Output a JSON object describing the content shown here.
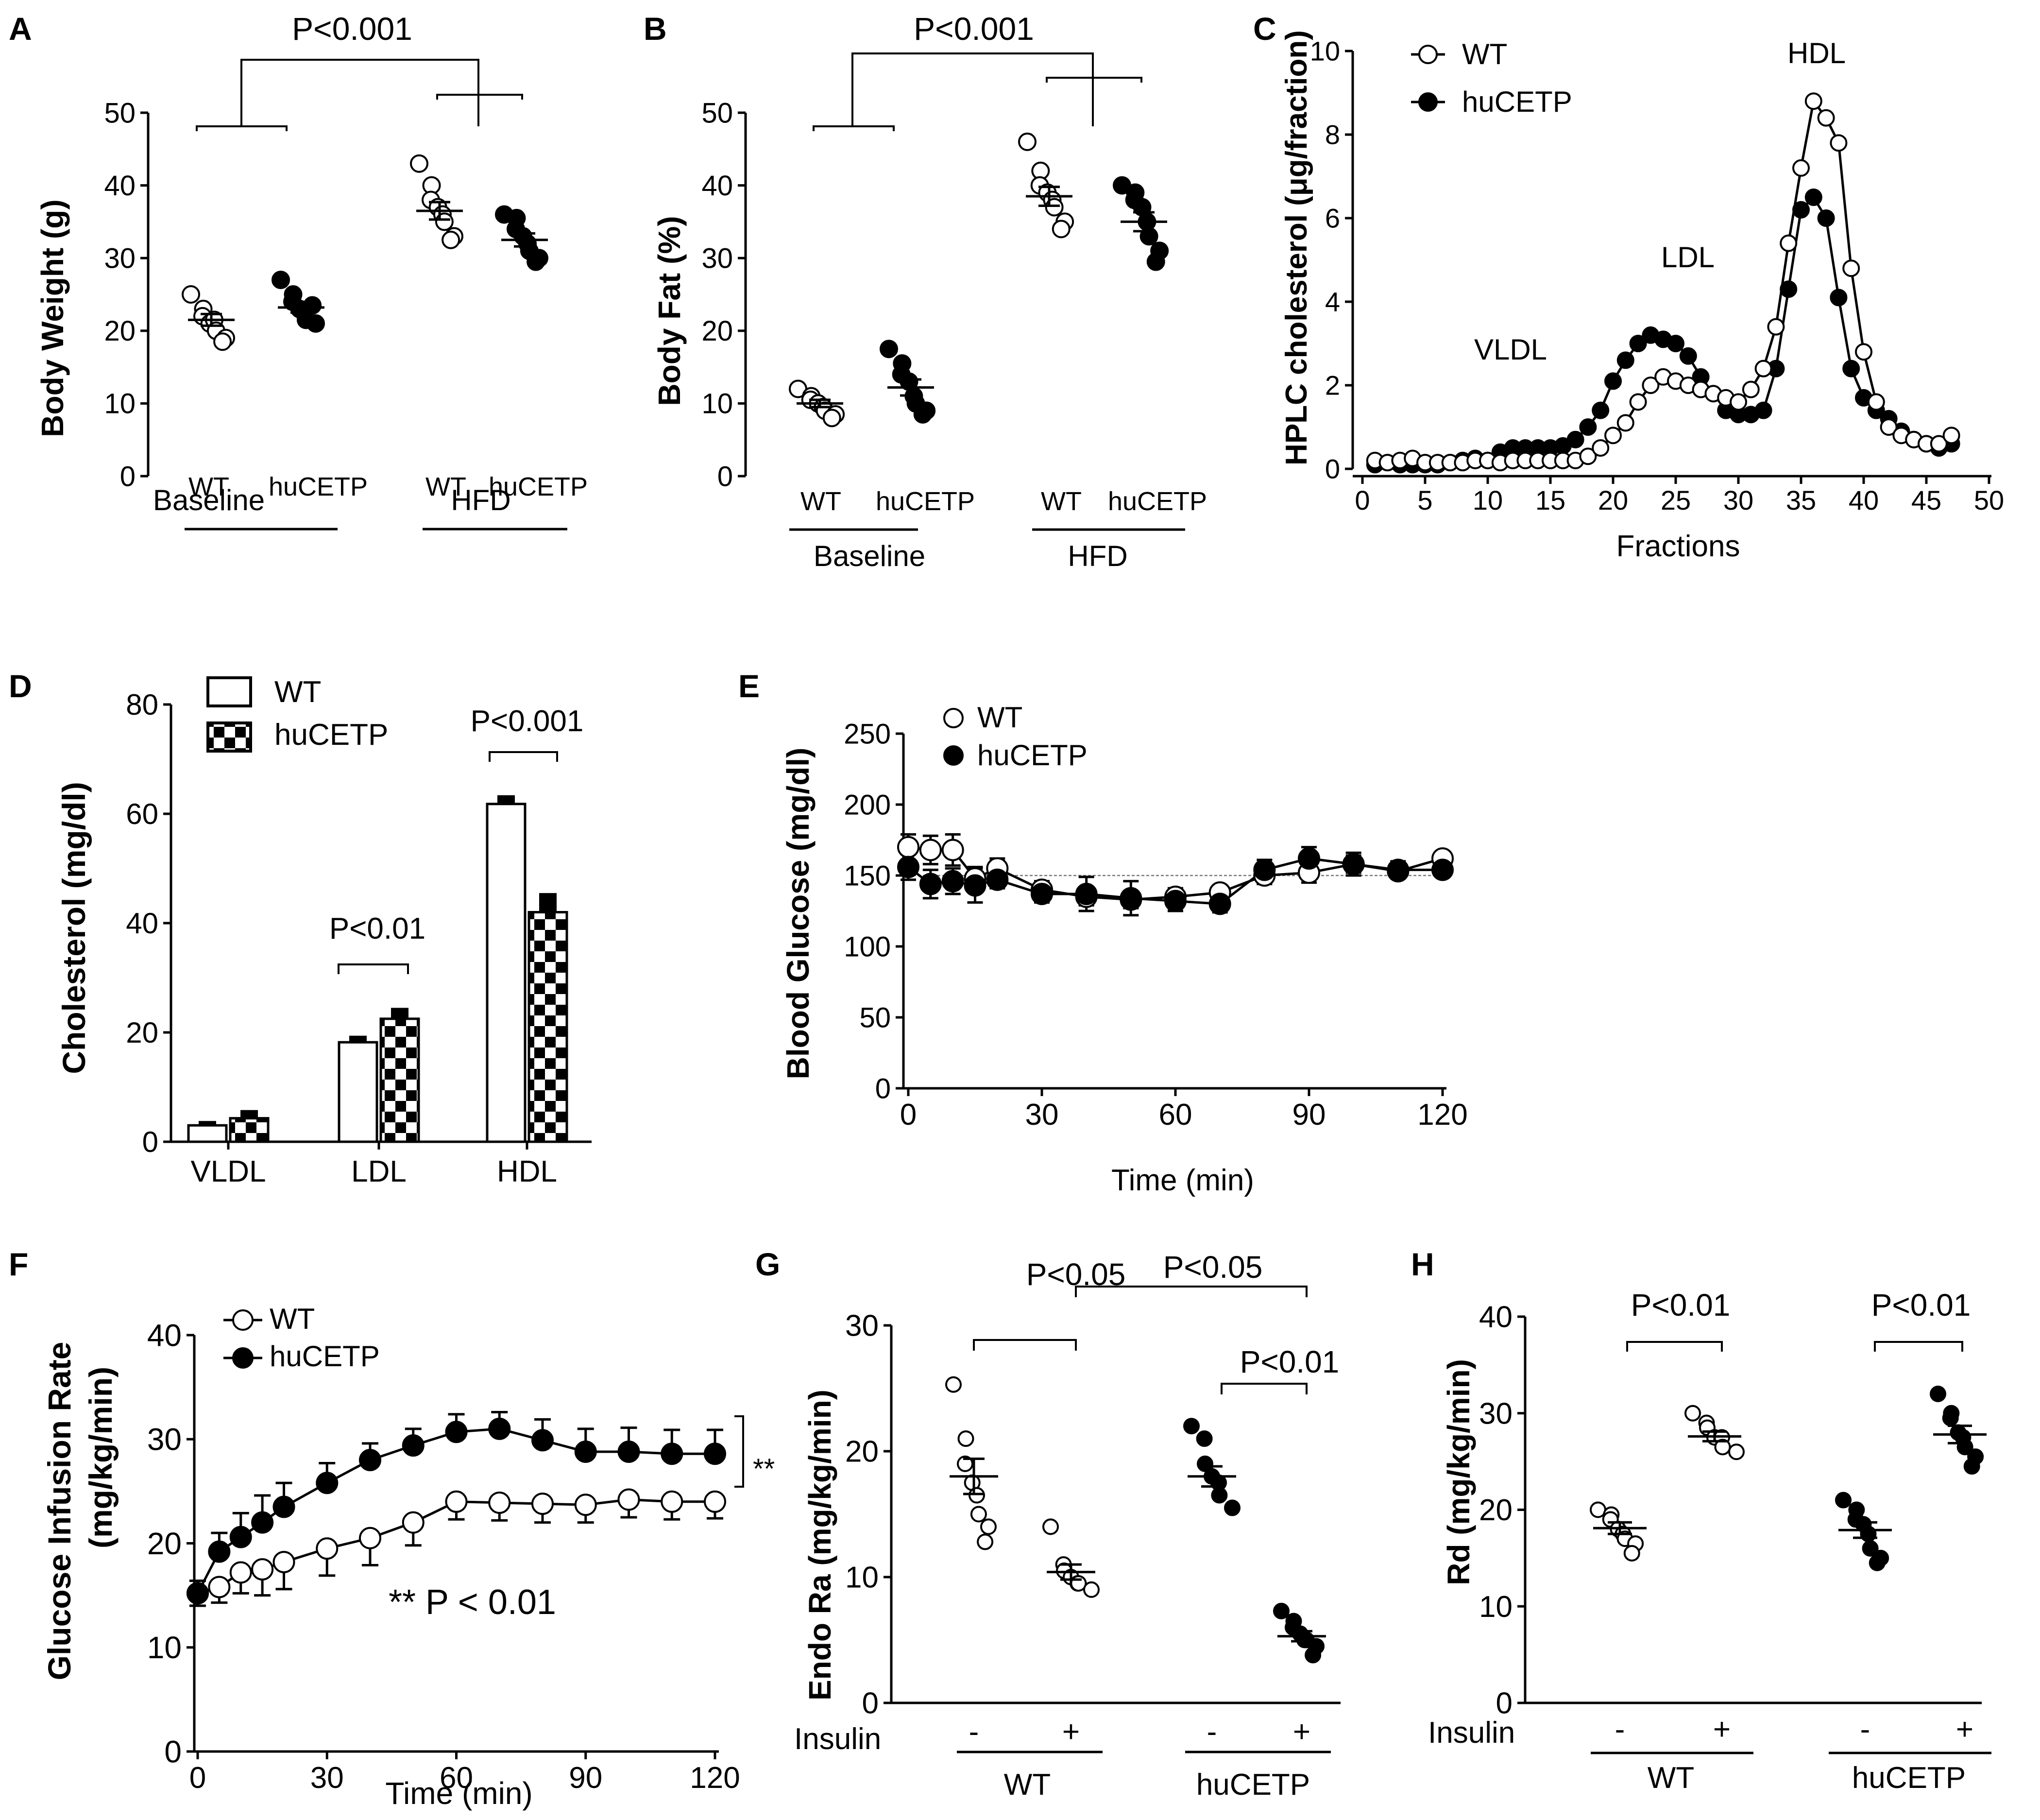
{
  "panels": {
    "A": {
      "letter": "A",
      "title": "P<0.001",
      "ylabel": "Body Weight (g)",
      "yticks": [
        "0",
        "10",
        "20",
        "30",
        "40",
        "50"
      ],
      "xlabels": [
        "WT",
        "huCETP",
        "WT",
        "huCETP"
      ],
      "groups": [
        "Baseline",
        "HFD"
      ]
    },
    "B": {
      "letter": "B",
      "title": "P<0.001",
      "ylabel": "Body Fat (%)",
      "yticks": [
        "0",
        "10",
        "20",
        "30",
        "40",
        "50"
      ],
      "xlabels": [
        "WT",
        "huCETP",
        "WT",
        "huCETP"
      ],
      "groups": [
        "Baseline",
        "HFD"
      ]
    },
    "C": {
      "letter": "C",
      "ylabel": "HPLC cholesterol (μg/fraction)",
      "xlabel": "Fractions",
      "yticks": [
        "0",
        "2",
        "4",
        "6",
        "8",
        "10"
      ],
      "xticks": [
        "0",
        "5",
        "10",
        "15",
        "20",
        "25",
        "30",
        "35",
        "40",
        "45",
        "50"
      ],
      "legend": [
        "WT",
        "huCETP"
      ],
      "annotations": [
        "VLDL",
        "LDL",
        "HDL"
      ]
    },
    "D": {
      "letter": "D",
      "ylabel": "Cholesterol  (mg/dl)",
      "yticks": [
        "0",
        "20",
        "40",
        "60",
        "80"
      ],
      "legend": [
        "WT",
        "huCETP"
      ],
      "pvalues": [
        "P<0.01",
        "P<0.001"
      ]
    },
    "E": {
      "letter": "E",
      "ylabel": "Blood Glucose (mg/dl)",
      "xlabel": "Time (min)",
      "yticks": [
        "0",
        "50",
        "100",
        "150",
        "200",
        "250"
      ],
      "xticks": [
        "0",
        "30",
        "60",
        "90",
        "120"
      ],
      "legend": [
        "WT",
        "huCETP"
      ]
    },
    "F": {
      "letter": "F",
      "ylabel_line1": "Glucose Infusion Rate",
      "ylabel_line2": "(mg/kg/min)",
      "xlabel": "Time (min)",
      "yticks": [
        "0",
        "10",
        "20",
        "30",
        "40"
      ],
      "xticks": [
        "0",
        "30",
        "60",
        "90",
        "120"
      ],
      "legend": [
        "WT",
        "huCETP"
      ],
      "sig": "**",
      "note": "** P < 0.01"
    },
    "G": {
      "letter": "G",
      "ylabel": "Endo Ra (mg/kg/min)",
      "yticks": [
        "0",
        "10",
        "20",
        "30"
      ],
      "insulin_label": "Insulin",
      "signs": [
        "-",
        "+",
        "-",
        "+"
      ],
      "groups": [
        "WT",
        "huCETP"
      ],
      "pvalues": [
        "P<0.05",
        "P<0.05",
        "P<0.01"
      ]
    },
    "H": {
      "letter": "H",
      "ylabel": "Rd (mg/kg/min)",
      "yticks": [
        "0",
        "10",
        "20",
        "30",
        "40"
      ],
      "insulin_label": "Insulin",
      "signs": [
        "-",
        "+",
        "-",
        "+"
      ],
      "groups": [
        "WT",
        "huCETP"
      ],
      "pvalues": [
        "P<0.01",
        "P<0.01"
      ]
    }
  },
  "chart_data": [
    {
      "panel": "A",
      "type": "scatter",
      "title": "P<0.001",
      "ylabel": "Body Weight (g)",
      "ylim": [
        0,
        50
      ],
      "categories": [
        "WT Baseline",
        "huCETP Baseline",
        "WT HFD",
        "huCETP HFD"
      ],
      "filled": [
        false,
        true,
        false,
        true
      ],
      "points": [
        [
          25,
          23,
          22,
          21,
          21.5,
          20,
          19,
          18.5
        ],
        [
          27,
          25,
          24,
          23,
          22.5,
          21.5,
          21,
          23.5
        ],
        [
          43,
          40,
          38,
          37,
          36,
          35,
          33,
          32.5
        ],
        [
          36,
          35.5,
          34,
          33,
          32,
          31,
          30,
          29.5
        ]
      ],
      "means": [
        21.5,
        23.2,
        36.5,
        32.5
      ],
      "sem": [
        0.8,
        0.7,
        1.2,
        0.9
      ]
    },
    {
      "panel": "B",
      "type": "scatter",
      "title": "P<0.001",
      "ylabel": "Body Fat (%)",
      "ylim": [
        0,
        50
      ],
      "categories": [
        "WT Baseline",
        "huCETP Baseline",
        "WT HFD",
        "huCETP HFD"
      ],
      "filled": [
        false,
        true,
        false,
        true
      ],
      "points": [
        [
          12,
          11,
          10.5,
          10,
          9.5,
          9,
          8.5,
          8
        ],
        [
          17.5,
          15.5,
          14,
          13,
          11,
          10,
          9,
          8.5
        ],
        [
          46,
          42,
          40,
          39,
          38,
          37,
          35,
          34
        ],
        [
          40,
          39,
          38,
          37,
          35,
          33,
          31,
          29.5
        ]
      ],
      "means": [
        10.0,
        12.2,
        38.5,
        35.0
      ],
      "sem": [
        0.5,
        1.1,
        1.3,
        1.3
      ]
    },
    {
      "panel": "C",
      "type": "line",
      "ylabel": "HPLC cholesterol (μg/fraction)",
      "xlabel": "Fractions",
      "xlim": [
        0,
        50
      ],
      "ylim": [
        0,
        10
      ],
      "series": [
        {
          "name": "WT",
          "x": [
            1,
            2,
            3,
            4,
            5,
            6,
            7,
            8,
            9,
            10,
            11,
            12,
            13,
            14,
            15,
            16,
            17,
            18,
            19,
            20,
            21,
            22,
            23,
            24,
            25,
            26,
            27,
            28,
            29,
            30,
            31,
            32,
            33,
            34,
            35,
            36,
            37,
            38,
            39,
            40,
            41,
            42,
            43,
            44,
            45,
            46,
            47
          ],
          "y": [
            0.2,
            0.15,
            0.2,
            0.25,
            0.15,
            0.15,
            0.15,
            0.15,
            0.2,
            0.2,
            0.15,
            0.2,
            0.2,
            0.2,
            0.2,
            0.2,
            0.2,
            0.3,
            0.5,
            0.8,
            1.1,
            1.6,
            2.0,
            2.2,
            2.1,
            2.0,
            1.9,
            1.8,
            1.7,
            1.6,
            1.9,
            2.4,
            3.4,
            5.4,
            7.2,
            8.8,
            8.4,
            7.8,
            4.8,
            2.8,
            1.6,
            1.0,
            0.8,
            0.7,
            0.6,
            0.6,
            0.8
          ]
        },
        {
          "name": "huCETP",
          "x": [
            1,
            2,
            3,
            4,
            5,
            6,
            7,
            8,
            9,
            10,
            11,
            12,
            13,
            14,
            15,
            16,
            17,
            18,
            19,
            20,
            21,
            22,
            23,
            24,
            25,
            26,
            27,
            28,
            29,
            30,
            31,
            32,
            33,
            34,
            35,
            36,
            37,
            38,
            39,
            40,
            41,
            42,
            43,
            44,
            45,
            46,
            47
          ],
          "y": [
            0.1,
            0.15,
            0.1,
            0.1,
            0.1,
            0.1,
            0.15,
            0.2,
            0.25,
            0.2,
            0.4,
            0.5,
            0.5,
            0.5,
            0.5,
            0.55,
            0.7,
            1.0,
            1.4,
            2.1,
            2.6,
            3.0,
            3.2,
            3.1,
            3.0,
            2.7,
            2.2,
            1.8,
            1.4,
            1.3,
            1.3,
            1.4,
            2.4,
            4.3,
            6.2,
            6.5,
            6.0,
            4.1,
            2.4,
            1.7,
            1.4,
            1.2,
            0.9,
            0.7,
            0.6,
            0.5,
            0.6
          ]
        }
      ]
    },
    {
      "panel": "D",
      "type": "bar",
      "ylabel": "Cholesterol  (mg/dl)",
      "ylim": [
        0,
        80
      ],
      "categories": [
        "VLDL",
        "LDL",
        "HDL"
      ],
      "series": [
        {
          "name": "WT",
          "values": [
            3.0,
            18.2,
            61.8
          ],
          "err": [
            0.8,
            1.2,
            1.6
          ]
        },
        {
          "name": "huCETP",
          "values": [
            4.3,
            22.5,
            42.0
          ],
          "err": [
            1.5,
            2.0,
            3.5
          ]
        }
      ]
    },
    {
      "panel": "E",
      "type": "line",
      "ylabel": "Blood Glucose (mg/dl)",
      "xlabel": "Time (min)",
      "xlim": [
        0,
        120
      ],
      "ylim": [
        0,
        250
      ],
      "reference": 150,
      "series": [
        {
          "name": "WT",
          "x": [
            0,
            5,
            10,
            15,
            20,
            30,
            40,
            50,
            60,
            70,
            80,
            90,
            100,
            110,
            120
          ],
          "y": [
            170,
            168,
            168,
            148,
            155,
            140,
            135,
            133,
            135,
            138,
            150,
            152,
            158,
            153,
            162
          ],
          "err": [
            9,
            10,
            11,
            8,
            7,
            6,
            6,
            6,
            6,
            5,
            6,
            7,
            6,
            5,
            4
          ]
        },
        {
          "name": "huCETP",
          "x": [
            0,
            5,
            10,
            15,
            20,
            30,
            40,
            50,
            60,
            70,
            80,
            90,
            100,
            110,
            120
          ],
          "y": [
            156,
            144,
            146,
            143,
            147,
            137,
            137,
            134,
            132,
            130,
            154,
            162,
            158,
            154,
            154
          ],
          "err": [
            9,
            10,
            9,
            12,
            6,
            6,
            12,
            12,
            7,
            6,
            7,
            8,
            8,
            6,
            5
          ]
        }
      ]
    },
    {
      "panel": "F",
      "type": "line",
      "ylabel": "Glucose Infusion Rate (mg/kg/min)",
      "xlabel": "Time (min)",
      "xlim": [
        0,
        120
      ],
      "ylim": [
        0,
        40
      ],
      "series": [
        {
          "name": "WT",
          "x": [
            0,
            5,
            10,
            15,
            20,
            30,
            40,
            50,
            60,
            70,
            80,
            90,
            100,
            110,
            120
          ],
          "y": [
            15.2,
            15.8,
            17.2,
            17.5,
            18.2,
            19.5,
            20.5,
            22.0,
            24.0,
            23.9,
            23.8,
            23.7,
            24.2,
            24.0,
            24.0
          ],
          "err": [
            1.2,
            1.5,
            2.0,
            2.5,
            2.6,
            2.6,
            2.6,
            2.2,
            1.7,
            1.7,
            1.8,
            1.7,
            1.7,
            1.7,
            1.6
          ]
        },
        {
          "name": "huCETP",
          "x": [
            0,
            5,
            10,
            15,
            20,
            30,
            40,
            50,
            60,
            70,
            80,
            90,
            100,
            110,
            120
          ],
          "y": [
            15.2,
            19.2,
            20.6,
            22.0,
            23.5,
            25.8,
            28.0,
            29.4,
            30.7,
            31.0,
            29.9,
            28.8,
            28.8,
            28.6,
            28.6
          ],
          "err": [
            1.2,
            1.8,
            2.3,
            2.6,
            2.3,
            1.9,
            1.6,
            1.6,
            1.7,
            1.6,
            2.0,
            2.2,
            2.3,
            2.3,
            2.3
          ]
        }
      ]
    },
    {
      "panel": "G",
      "type": "scatter",
      "ylabel": "Endo Ra (mg/kg/min)",
      "ylim": [
        0,
        30
      ],
      "categories": [
        "WT -",
        "WT +",
        "huCETP -",
        "huCETP +"
      ],
      "filled": [
        false,
        false,
        true,
        true
      ],
      "points": [
        [
          25.3,
          21,
          19,
          17.5,
          16.5,
          15,
          14,
          12.8
        ],
        [
          14,
          11,
          10.5,
          10,
          9.5,
          9.5,
          9
        ],
        [
          22,
          21,
          19,
          18,
          17.5,
          16.5,
          15.5
        ],
        [
          7.3,
          6.5,
          6,
          5.5,
          5,
          5,
          4.5,
          3.8
        ]
      ],
      "means": [
        18.0,
        10.4,
        18.0,
        5.3
      ],
      "sem": [
        1.4,
        0.6,
        0.8,
        0.4
      ]
    },
    {
      "panel": "H",
      "type": "scatter",
      "ylabel": "Rd (mg/kg/min)",
      "ylim": [
        0,
        40
      ],
      "categories": [
        "WT -",
        "WT +",
        "huCETP -",
        "huCETP +"
      ],
      "filled": [
        false,
        false,
        true,
        true
      ],
      "points": [
        [
          20,
          19.5,
          19,
          18,
          17.5,
          17,
          16.5,
          15.5
        ],
        [
          30,
          29,
          28.5,
          27.5,
          27.5,
          26.5,
          26
        ],
        [
          21,
          20,
          19,
          18.5,
          17.5,
          16,
          15,
          14.5
        ],
        [
          32,
          30,
          29.5,
          28,
          27.5,
          26.5,
          25.5,
          24.5
        ]
      ],
      "means": [
        18.1,
        27.6,
        17.9,
        27.8
      ],
      "sem": [
        0.6,
        0.5,
        0.8,
        0.9
      ]
    }
  ]
}
